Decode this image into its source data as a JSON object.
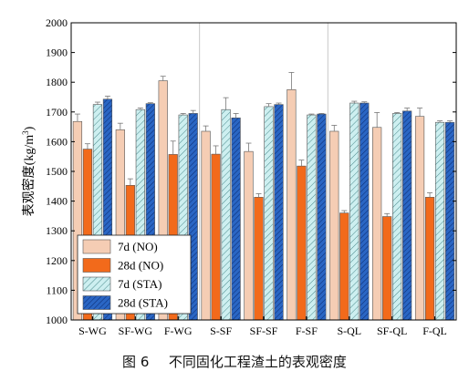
{
  "caption": {
    "label": "图 6",
    "text": "不同固化工程渣土的表观密度"
  },
  "chart_data": {
    "type": "bar",
    "ylabel": "表观密度",
    "ylabel_unit": "(kg/m",
    "ylabel_unit_sup": "3",
    "ylabel_unit_close": ")",
    "ylim": [
      1000,
      2000
    ],
    "yticks": [
      "1000",
      "1100",
      "1200",
      "1300",
      "1400",
      "1500",
      "1600",
      "1700",
      "1800",
      "1900",
      "2000"
    ],
    "categories": [
      "S-WG",
      "SF-WG",
      "F-WG",
      "S-SF",
      "SF-SF",
      "F-SF",
      "S-QL",
      "SF-QL",
      "F-QL"
    ],
    "group_separators_after": [
      2,
      5
    ],
    "legend_position": "bottom-left",
    "series": [
      {
        "name": "7d (NO)",
        "color": "#f5cdb4",
        "pattern": "none",
        "values": [
          1668,
          1640,
          1805,
          1635,
          1567,
          1775,
          1635,
          1648,
          1685
        ],
        "errors": [
          25,
          22,
          15,
          18,
          28,
          58,
          20,
          50,
          28
        ]
      },
      {
        "name": "28d (NO)",
        "color": "#f26a1b",
        "pattern": "none",
        "values": [
          1575,
          1453,
          1557,
          1558,
          1413,
          1518,
          1360,
          1348,
          1413
        ],
        "errors": [
          18,
          22,
          45,
          28,
          12,
          20,
          8,
          10,
          15
        ]
      },
      {
        "name": "7d (STA)",
        "color": "#cdeff0",
        "pattern": "hatch-light",
        "values": [
          1725,
          1708,
          1690,
          1708,
          1718,
          1690,
          1730,
          1695,
          1665
        ],
        "errors": [
          8,
          5,
          5,
          40,
          10,
          3,
          6,
          3,
          5
        ]
      },
      {
        "name": "28d (STA)",
        "color": "#2a66c4",
        "pattern": "hatch-dark",
        "values": [
          1743,
          1728,
          1695,
          1680,
          1725,
          1693,
          1730,
          1703,
          1665
        ],
        "errors": [
          10,
          3,
          10,
          15,
          5,
          2,
          4,
          10,
          5
        ]
      }
    ]
  }
}
